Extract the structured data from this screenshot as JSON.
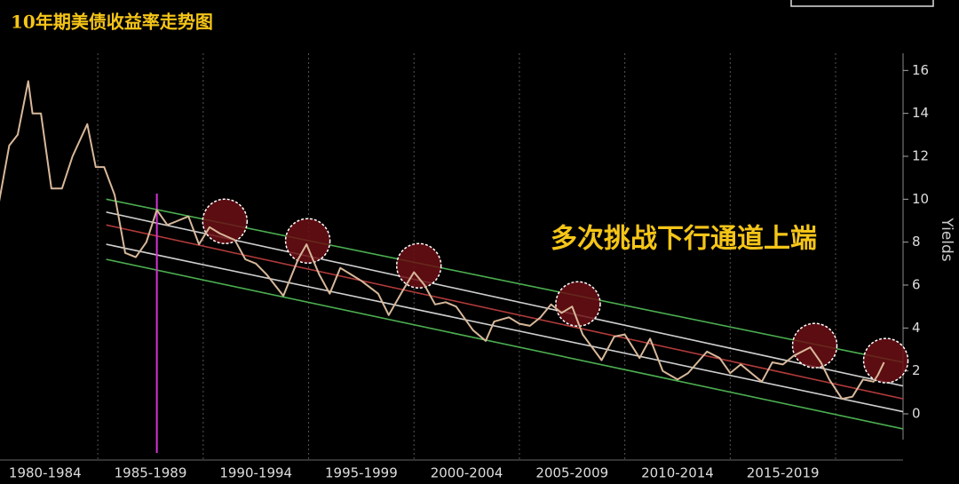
{
  "chart_data": {
    "type": "line",
    "title": "10年期美债收益率走势图",
    "annotation": "多次挑战下行通道上端",
    "ylabel": "Yields",
    "color": "#d8b89a",
    "x": [
      1980.3,
      1980.8,
      1981.2,
      1981.7,
      1981.9,
      1982.3,
      1982.8,
      1983.3,
      1983.8,
      1984.5,
      1984.9,
      1985.3,
      1985.8,
      1986.3,
      1986.8,
      1987.3,
      1987.8,
      1988.3,
      1988.8,
      1989.3,
      1989.8,
      1990.3,
      1990.8,
      1991.5,
      1992.0,
      1992.5,
      1993.0,
      1993.8,
      1994.5,
      1994.9,
      1995.5,
      1996.0,
      1996.5,
      1997.0,
      1997.5,
      1998.3,
      1998.8,
      1999.5,
      2000.0,
      2000.5,
      2001.0,
      2001.5,
      2002.0,
      2002.8,
      2003.4,
      2003.8,
      2004.5,
      2005.0,
      2005.5,
      2006.0,
      2006.5,
      2007.0,
      2007.5,
      2008.0,
      2008.9,
      2009.5,
      2010.0,
      2010.7,
      2011.2,
      2011.8,
      2012.5,
      2013.0,
      2013.9,
      2014.5,
      2015.0,
      2015.5,
      2016.5,
      2017.0,
      2017.5,
      2018.0,
      2018.8,
      2019.3,
      2019.7,
      2020.3,
      2020.8,
      2021.3,
      2021.8,
      2022.0,
      2022.3
    ],
    "values": [
      9.8,
      12.5,
      13,
      15.5,
      14,
      14,
      10.5,
      10.5,
      12,
      13.5,
      11.5,
      11.5,
      10.2,
      7.5,
      7.3,
      8,
      9.5,
      8.8,
      9,
      9.2,
      7.9,
      8.7,
      8.4,
      8.1,
      7.2,
      7.0,
      6.5,
      5.5,
      7.2,
      7.9,
      6.5,
      5.6,
      6.8,
      6.5,
      6.2,
      5.6,
      4.6,
      5.8,
      6.6,
      6.0,
      5.1,
      5.2,
      5.0,
      3.9,
      3.4,
      4.3,
      4.5,
      4.2,
      4.1,
      4.5,
      5.1,
      4.7,
      5.0,
      3.7,
      2.5,
      3.6,
      3.7,
      2.6,
      3.5,
      2.0,
      1.6,
      1.9,
      2.9,
      2.6,
      1.9,
      2.3,
      1.5,
      2.4,
      2.3,
      2.7,
      3.1,
      2.4,
      1.6,
      0.7,
      0.8,
      1.6,
      1.5,
      1.8,
      2.4
    ],
    "xlim": [
      1980.36,
      2023.2
    ],
    "ylim": [
      -1.2,
      16.8
    ],
    "yticks": [
      0,
      2,
      4,
      6,
      8,
      10,
      12,
      14,
      16
    ],
    "xticks": [
      {
        "value": 1982.5,
        "label": "1980-1984"
      },
      {
        "value": 1987.5,
        "label": "1985-1989"
      },
      {
        "value": 1992.5,
        "label": "1990-1994"
      },
      {
        "value": 1997.5,
        "label": "1995-1999"
      },
      {
        "value": 2002.5,
        "label": "2000-2004"
      },
      {
        "value": 2007.5,
        "label": "2005-2009"
      },
      {
        "value": 2012.5,
        "label": "2010-2014"
      },
      {
        "value": 2017.5,
        "label": "2015-2019"
      }
    ],
    "channels": [
      {
        "color": "#4caf50",
        "x": [
          1985.4,
          2023.2
        ],
        "values": [
          10.0,
          2.4
        ]
      },
      {
        "color": "#cfcfcf",
        "x": [
          1985.4,
          2023.2
        ],
        "values": [
          9.4,
          1.3
        ]
      },
      {
        "color": "#b03a3a",
        "x": [
          1985.4,
          2023.2
        ],
        "values": [
          8.8,
          0.7
        ]
      },
      {
        "color": "#cfcfcf",
        "x": [
          1985.4,
          2023.2
        ],
        "values": [
          7.9,
          0.1
        ]
      },
      {
        "color": "#4caf50",
        "x": [
          1985.4,
          2023.2
        ],
        "values": [
          7.2,
          -0.7
        ]
      }
    ],
    "highlights": {
      "x": [
        1991.03,
        1994.96,
        2000.23,
        2007.78,
        2019.01,
        2022.38
      ],
      "values": [
        8.97,
        8.06,
        6.9,
        5.12,
        3.18,
        2.48
      ]
    },
    "marker_x": 1987.8
  }
}
